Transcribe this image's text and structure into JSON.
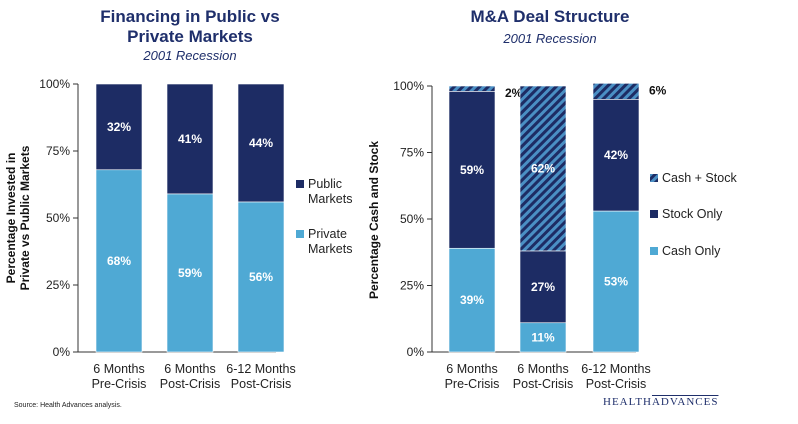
{
  "footer": {
    "source": "Source:  Health Advances analysis.",
    "logo_left": "HEALTH",
    "logo_right": "ADVANCES"
  },
  "colors": {
    "dark": "#1d2c64",
    "light": "#4fa9d4",
    "stripe": "#3f86b8",
    "text": "#1f2f6b"
  },
  "chart_data": [
    {
      "type": "bar",
      "stacked": true,
      "normalized": true,
      "title": "Financing in Public vs Private Markets",
      "title_lines": [
        "Financing in Public vs",
        "Private Markets"
      ],
      "subtitle": "2001 Recession",
      "ylabel_lines": [
        "Percentage Invested in",
        "Private vs Public Markets"
      ],
      "ylim": [
        0,
        100
      ],
      "yticks": [
        "0%",
        "25%",
        "50%",
        "75%",
        "100%"
      ],
      "categories": [
        [
          "6 Months",
          "Pre-Crisis"
        ],
        [
          "6 Months",
          "Post-Crisis"
        ],
        [
          "6-12 Months",
          "Post-Crisis"
        ]
      ],
      "series": [
        {
          "name": "Private Markets",
          "legend_lines": [
            "Private",
            "Markets"
          ],
          "color": "#4fa9d4",
          "pattern": "solid",
          "values": [
            68,
            59,
            56
          ],
          "labels": [
            "68%",
            "59%",
            "56%"
          ]
        },
        {
          "name": "Public Markets",
          "legend_lines": [
            "Public",
            "Markets"
          ],
          "color": "#1d2c64",
          "pattern": "solid",
          "values": [
            32,
            41,
            44
          ],
          "labels": [
            "32%",
            "41%",
            "44%"
          ]
        }
      ],
      "legend_position": "right"
    },
    {
      "type": "bar",
      "stacked": true,
      "normalized": true,
      "title": "M&A Deal Structure",
      "title_lines": [
        "M&A Deal Structure"
      ],
      "subtitle": "2001 Recession",
      "ylabel_lines": [
        "Percentage Cash and Stock"
      ],
      "ylim": [
        0,
        100
      ],
      "yticks": [
        "0%",
        "25%",
        "50%",
        "75%",
        "100%"
      ],
      "categories": [
        [
          "6 Months",
          "Pre-Crisis"
        ],
        [
          "6 Months",
          "Post-Crisis"
        ],
        [
          "6-12 Months",
          "Post-Crisis"
        ]
      ],
      "series": [
        {
          "name": "Cash Only",
          "legend_lines": [
            "Cash Only"
          ],
          "color": "#4fa9d4",
          "pattern": "solid",
          "values": [
            39,
            11,
            53
          ],
          "labels": [
            "39%",
            "11%",
            "53%"
          ]
        },
        {
          "name": "Stock Only",
          "legend_lines": [
            "Stock Only"
          ],
          "color": "#1d2c64",
          "pattern": "solid",
          "values": [
            59,
            27,
            42
          ],
          "labels": [
            "59%",
            "27%",
            "42%"
          ]
        },
        {
          "name": "Cash + Stock",
          "legend_lines": [
            "Cash + Stock"
          ],
          "color": "#3f86b8",
          "pattern": "hatch",
          "values": [
            2,
            62,
            6
          ],
          "labels": [
            "2%",
            "62%",
            "6%"
          ]
        }
      ],
      "legend_position": "right"
    }
  ]
}
